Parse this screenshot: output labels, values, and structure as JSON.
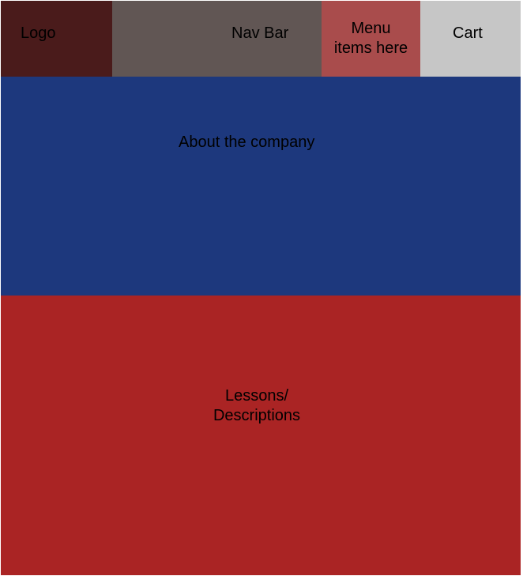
{
  "header": {
    "logo": "Logo",
    "nav_bar": "Nav Bar",
    "menu_items": "Menu\nitems here",
    "cart": "Cart"
  },
  "sections": {
    "about": "About the company",
    "lessons": "Lessons/\nDescriptions"
  },
  "colors": {
    "logo_block": "#4a1b1b",
    "nav_block": "#615654",
    "menu_block": "#a94c4c",
    "cart_block": "#c6c6c6",
    "about_block": "#1d387d",
    "lessons_block": "#aa2424"
  }
}
